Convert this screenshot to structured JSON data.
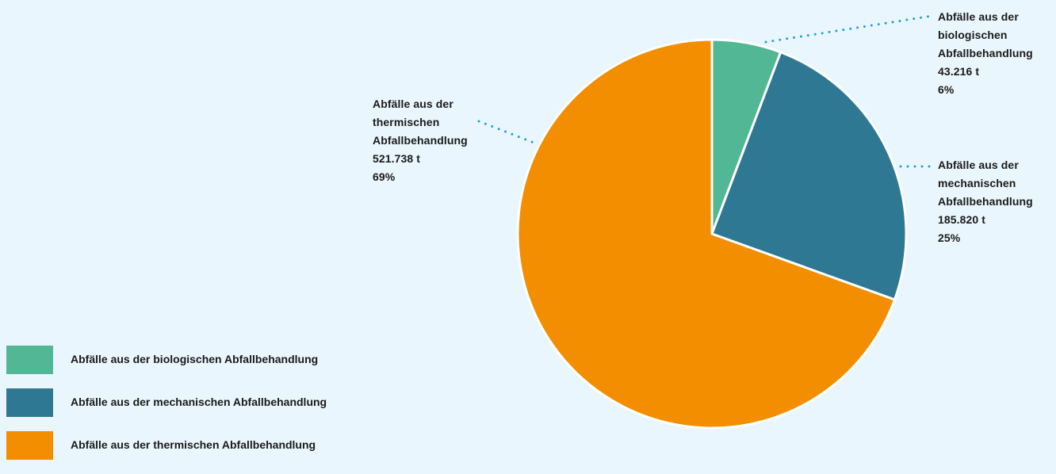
{
  "chart_data": {
    "type": "pie",
    "title": "",
    "unit": "t",
    "slices": [
      {
        "label_lines": [
          "Abfälle aus der",
          "biologischen",
          "Abfallbehandlung"
        ],
        "value": 43216,
        "value_label": "43.216 t",
        "percent_label": "6%",
        "color": "#52b795"
      },
      {
        "label_lines": [
          "Abfälle aus der",
          "mechanischen",
          "Abfallbehandlung"
        ],
        "value": 185820,
        "value_label": "185.820 t",
        "percent_label": "25%",
        "color": "#2e7894"
      },
      {
        "label_lines": [
          "Abfälle aus der",
          "thermischen",
          "Abfallbehandlung"
        ],
        "value": 521738,
        "value_label": "521.738 t",
        "percent_label": "69%",
        "color": "#f28e00"
      }
    ],
    "legend": {
      "placement": "bottom-left",
      "items": [
        "Abfälle aus der biologischen Abfallbehandlung",
        "Abfälle aus der mechanischen Abfallbehandlung",
        "Abfälle aus der thermischen Abfallbehandlung"
      ]
    },
    "leader_color": "#1aa3d6"
  }
}
